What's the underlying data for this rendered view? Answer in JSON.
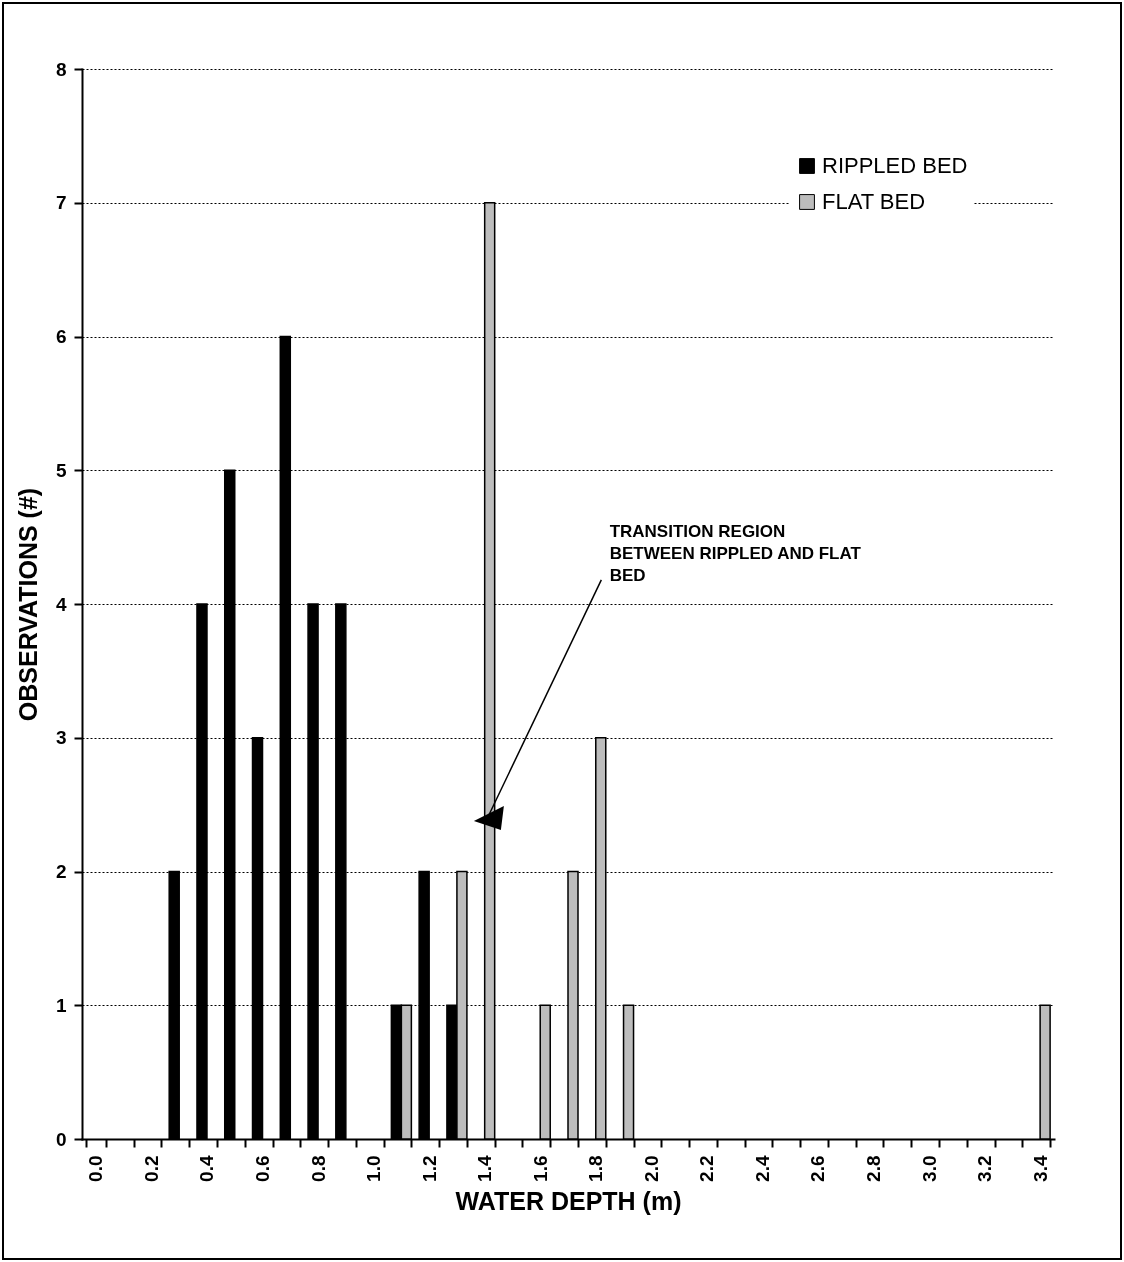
{
  "chart_data": {
    "type": "bar",
    "xlabel": "WATER DEPTH (m)",
    "ylabel": "OBSERVATIONS (#)",
    "categories": [
      "0.0",
      null,
      "0.2",
      null,
      "0.4",
      null,
      "0.6",
      null,
      "0.8",
      null,
      "1.0",
      null,
      "1.2",
      null,
      "1.4",
      null,
      "1.6",
      null,
      "1.8",
      null,
      "2.0",
      null,
      "2.2",
      null,
      "2.4",
      null,
      "2.6",
      null,
      "2.8",
      null,
      "3.0",
      null,
      "3.2",
      null,
      "3.4"
    ],
    "series": [
      {
        "name": "RIPPLED BED",
        "color": "#000000",
        "values": [
          0,
          0,
          0,
          2,
          4,
          5,
          3,
          6,
          4,
          4,
          0,
          1,
          2,
          1,
          0,
          0,
          0,
          0,
          0,
          0,
          0,
          0,
          0,
          0,
          0,
          0,
          0,
          0,
          0,
          0,
          0,
          0,
          0,
          0,
          0
        ]
      },
      {
        "name": "FLAT BED",
        "color": "#bdbdbd",
        "values": [
          0,
          0,
          0,
          0,
          0,
          0,
          0,
          0,
          0,
          0,
          0,
          1,
          0,
          2,
          7,
          0,
          1,
          2,
          3,
          1,
          0,
          0,
          0,
          0,
          0,
          0,
          0,
          0,
          0,
          0,
          0,
          0,
          0,
          0,
          1
        ]
      }
    ],
    "ylim": [
      0,
      8
    ],
    "yticks": [
      0,
      1,
      2,
      3,
      4,
      5,
      6,
      7,
      8
    ],
    "grid": "y",
    "legend": "top right",
    "annotations": [
      {
        "text": "TRANSITION  REGION\nBETWEEN RIPPLED AND FLAT\nBED",
        "x": "1.4",
        "y": 2.4
      }
    ]
  }
}
